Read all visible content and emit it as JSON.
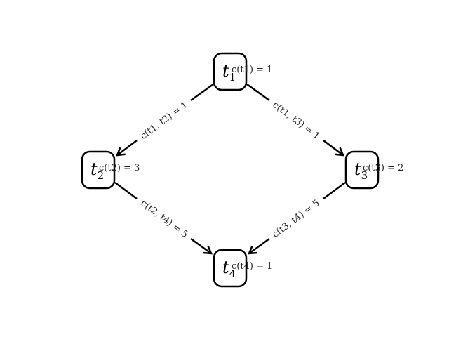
{
  "nodes": [
    {
      "id": "t1",
      "label": "t1",
      "label_base": "t",
      "label_sub": "1",
      "cost_text": "c(t1) = 1"
    },
    {
      "id": "t2",
      "label": "t2",
      "label_base": "t",
      "label_sub": "2",
      "cost_text": "c(t2) = 3"
    },
    {
      "id": "t3",
      "label": "t3",
      "label_base": "t",
      "label_sub": "3",
      "cost_text": "c(t3) = 2"
    },
    {
      "id": "t4",
      "label": "t4",
      "label_base": "t",
      "label_sub": "4",
      "cost_text": "c(t4) = 1"
    }
  ],
  "edges": [
    {
      "from": "t1",
      "to": "t2",
      "label": "c(t1, t2) = 1"
    },
    {
      "from": "t1",
      "to": "t3",
      "label": "c(t1, t3) = 1"
    },
    {
      "from": "t2",
      "to": "t4",
      "label": "c(t2, t4) = 5"
    },
    {
      "from": "t3",
      "to": "t4",
      "label": "c(t3, t4) = 5"
    }
  ]
}
